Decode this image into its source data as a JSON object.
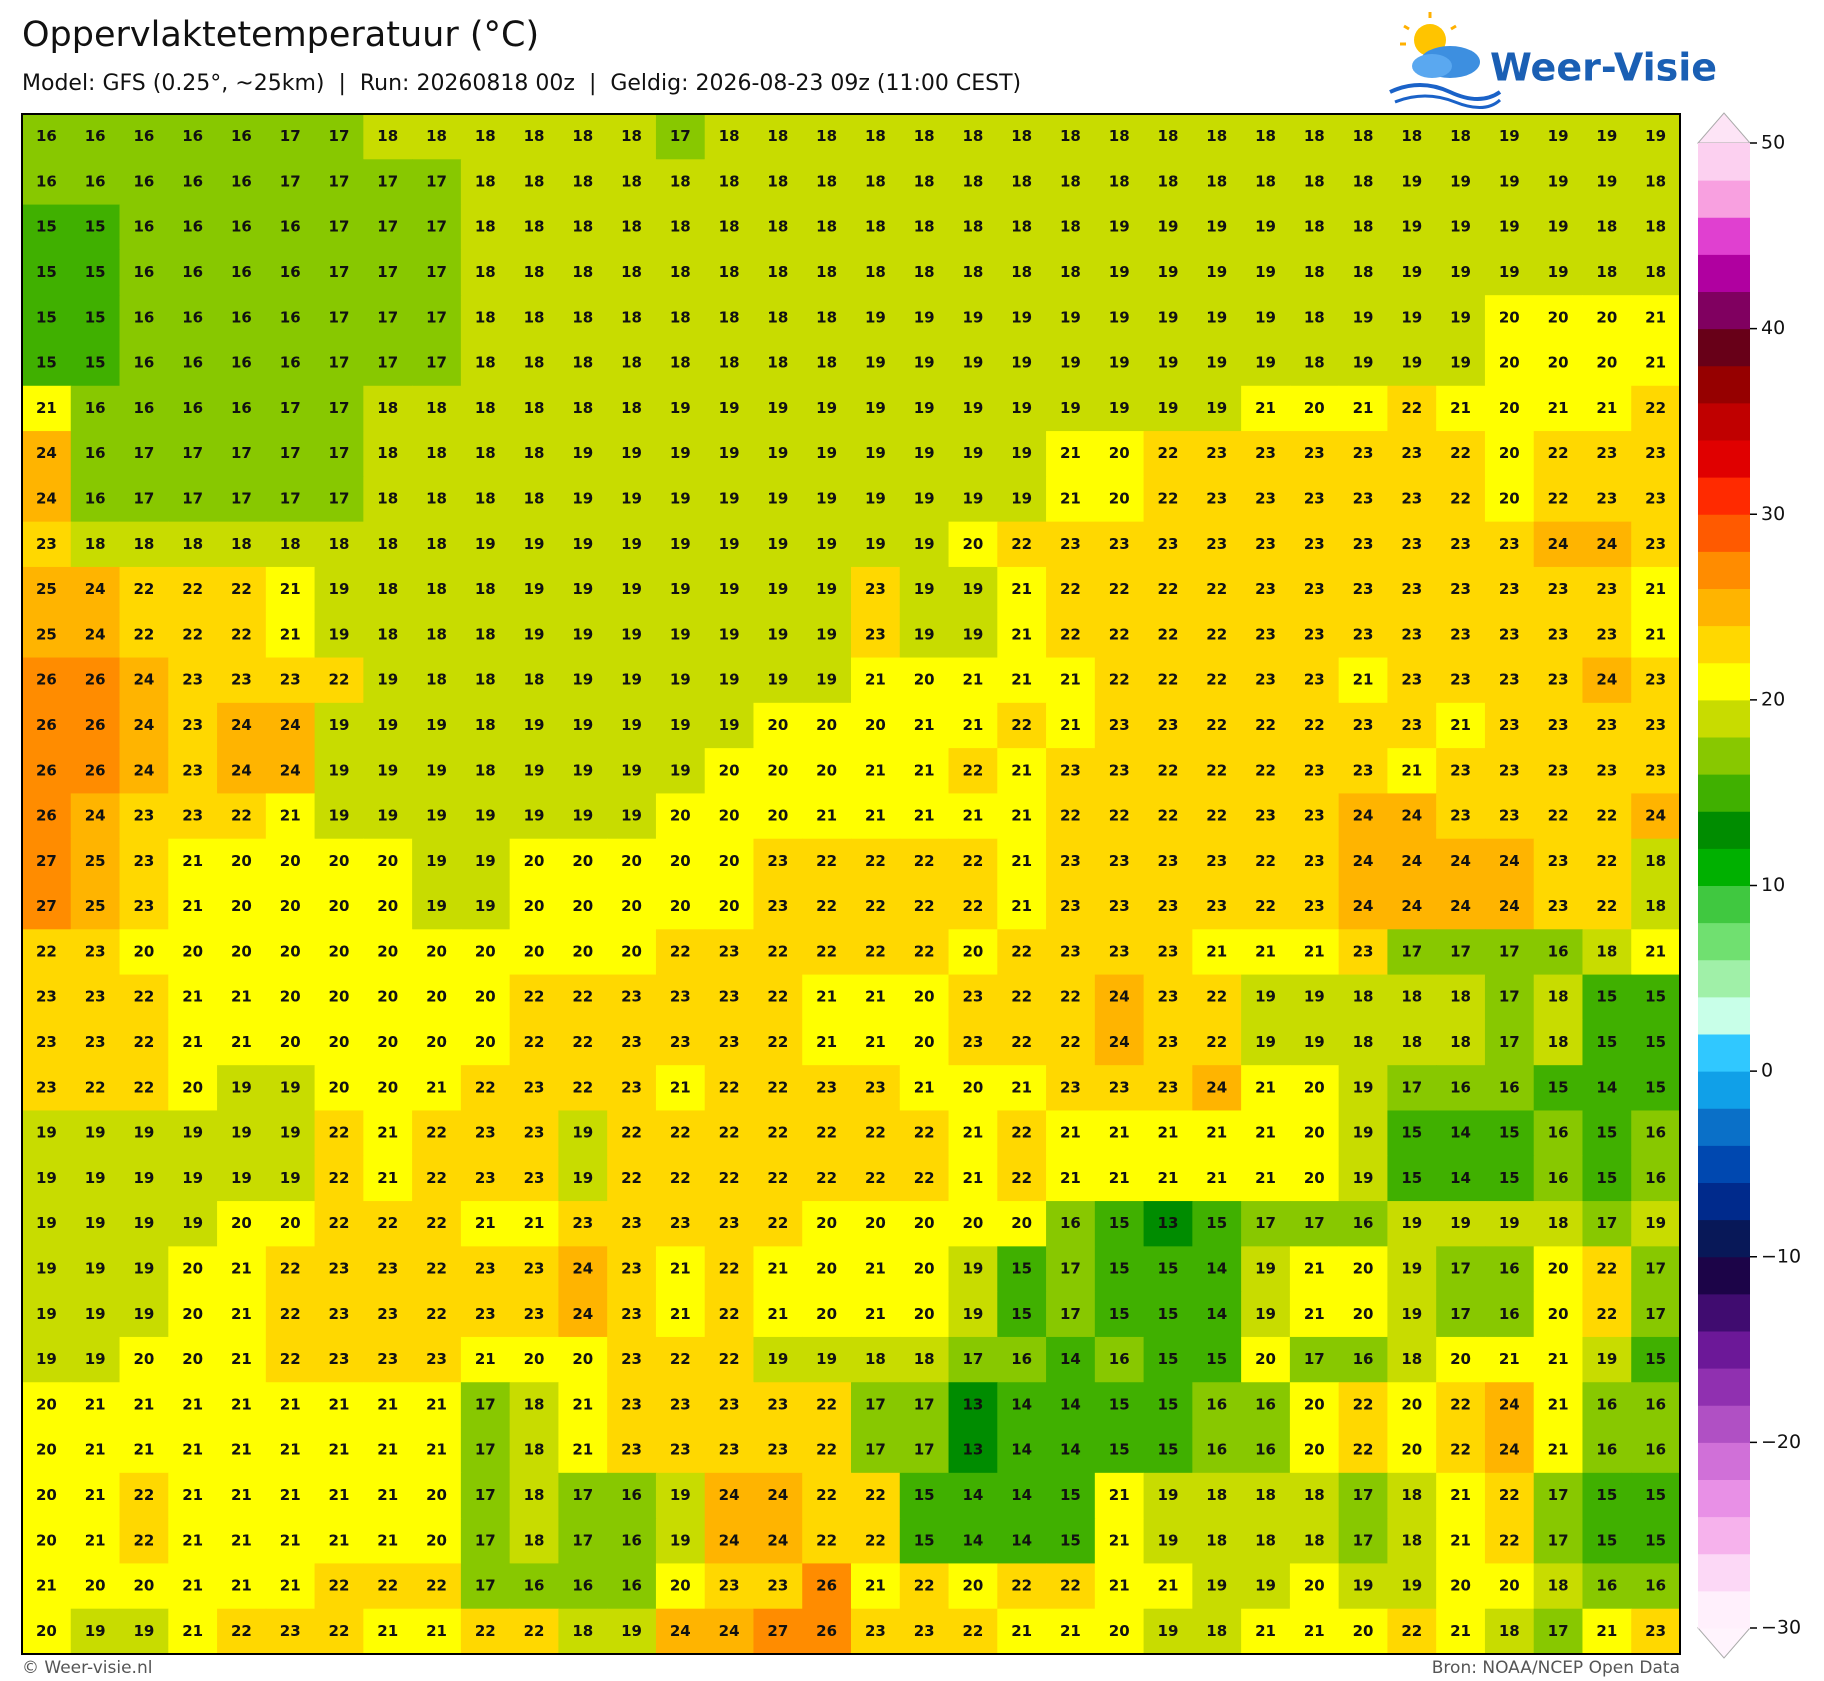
{
  "header": {
    "title": "Oppervlaktetemperatuur (°C)",
    "subtitle": "Model: GFS (0.25°, ~25km)  |  Run: 20260818 00z  |  Geldig: 2026-08-23 09z (11:00 CEST)"
  },
  "logo": "Weer-Visie",
  "chart_data": {
    "type": "heatmap",
    "values": [
      [
        16,
        16,
        16,
        16,
        16,
        17,
        17,
        18,
        18,
        18,
        18,
        18,
        18,
        17,
        18,
        18,
        18,
        18,
        18,
        18,
        18,
        18,
        18,
        18,
        18,
        18,
        18,
        18,
        18,
        18,
        19,
        19,
        19,
        19
      ],
      [
        16,
        16,
        16,
        16,
        16,
        17,
        17,
        17,
        17,
        18,
        18,
        18,
        18,
        18,
        18,
        18,
        18,
        18,
        18,
        18,
        18,
        18,
        18,
        18,
        18,
        18,
        18,
        18,
        19,
        19,
        19,
        19,
        19,
        18
      ],
      [
        15,
        15,
        16,
        16,
        16,
        16,
        17,
        17,
        17,
        18,
        18,
        18,
        18,
        18,
        18,
        18,
        18,
        18,
        18,
        18,
        18,
        18,
        19,
        19,
        19,
        19,
        18,
        18,
        19,
        19,
        19,
        19,
        18,
        18
      ],
      [
        15,
        15,
        16,
        16,
        16,
        16,
        17,
        17,
        17,
        18,
        18,
        18,
        18,
        18,
        18,
        18,
        18,
        18,
        18,
        18,
        18,
        18,
        19,
        19,
        19,
        19,
        18,
        18,
        19,
        19,
        19,
        19,
        18,
        18
      ],
      [
        15,
        15,
        16,
        16,
        16,
        16,
        17,
        17,
        17,
        18,
        18,
        18,
        18,
        18,
        18,
        18,
        18,
        19,
        19,
        19,
        19,
        19,
        19,
        19,
        19,
        19,
        18,
        19,
        19,
        19,
        20,
        20,
        20,
        21
      ],
      [
        15,
        15,
        16,
        16,
        16,
        16,
        17,
        17,
        17,
        18,
        18,
        18,
        18,
        18,
        18,
        18,
        18,
        19,
        19,
        19,
        19,
        19,
        19,
        19,
        19,
        19,
        18,
        19,
        19,
        19,
        20,
        20,
        20,
        21
      ],
      [
        21,
        16,
        16,
        16,
        16,
        17,
        17,
        18,
        18,
        18,
        18,
        18,
        18,
        19,
        19,
        19,
        19,
        19,
        19,
        19,
        19,
        19,
        19,
        19,
        19,
        21,
        20,
        21,
        22,
        21,
        20,
        21,
        21,
        22
      ],
      [
        24,
        16,
        17,
        17,
        17,
        17,
        17,
        18,
        18,
        18,
        18,
        19,
        19,
        19,
        19,
        19,
        19,
        19,
        19,
        19,
        19,
        21,
        20,
        22,
        23,
        23,
        23,
        23,
        23,
        22,
        20,
        22,
        23,
        23
      ],
      [
        24,
        16,
        17,
        17,
        17,
        17,
        17,
        18,
        18,
        18,
        18,
        19,
        19,
        19,
        19,
        19,
        19,
        19,
        19,
        19,
        19,
        21,
        20,
        22,
        23,
        23,
        23,
        23,
        23,
        22,
        20,
        22,
        23,
        23
      ],
      [
        23,
        18,
        18,
        18,
        18,
        18,
        18,
        18,
        18,
        19,
        19,
        19,
        19,
        19,
        19,
        19,
        19,
        19,
        19,
        20,
        22,
        23,
        23,
        23,
        23,
        23,
        23,
        23,
        23,
        23,
        23,
        24,
        24,
        23
      ],
      [
        25,
        24,
        22,
        22,
        22,
        21,
        19,
        18,
        18,
        18,
        19,
        19,
        19,
        19,
        19,
        19,
        19,
        23,
        19,
        19,
        21,
        22,
        22,
        22,
        22,
        23,
        23,
        23,
        23,
        23,
        23,
        23,
        23,
        21
      ],
      [
        25,
        24,
        22,
        22,
        22,
        21,
        19,
        18,
        18,
        18,
        19,
        19,
        19,
        19,
        19,
        19,
        19,
        23,
        19,
        19,
        21,
        22,
        22,
        22,
        22,
        23,
        23,
        23,
        23,
        23,
        23,
        23,
        23,
        21
      ],
      [
        26,
        26,
        24,
        23,
        23,
        23,
        22,
        19,
        18,
        18,
        18,
        19,
        19,
        19,
        19,
        19,
        19,
        21,
        20,
        21,
        21,
        21,
        22,
        22,
        22,
        23,
        23,
        21,
        23,
        23,
        23,
        23,
        24,
        23
      ],
      [
        26,
        26,
        24,
        23,
        24,
        24,
        19,
        19,
        19,
        18,
        19,
        19,
        19,
        19,
        19,
        20,
        20,
        20,
        21,
        21,
        22,
        21,
        23,
        23,
        22,
        22,
        22,
        23,
        23,
        21,
        23,
        23,
        23,
        23
      ],
      [
        26,
        26,
        24,
        23,
        24,
        24,
        19,
        19,
        19,
        18,
        19,
        19,
        19,
        19,
        20,
        20,
        20,
        21,
        21,
        22,
        21,
        23,
        23,
        22,
        22,
        22,
        23,
        23,
        21,
        23,
        23,
        23,
        23,
        23
      ],
      [
        26,
        24,
        23,
        23,
        22,
        21,
        19,
        19,
        19,
        19,
        19,
        19,
        19,
        20,
        20,
        20,
        21,
        21,
        21,
        21,
        21,
        22,
        22,
        22,
        22,
        23,
        23,
        24,
        24,
        23,
        23,
        22,
        22,
        24
      ],
      [
        27,
        25,
        23,
        21,
        20,
        20,
        20,
        20,
        19,
        19,
        20,
        20,
        20,
        20,
        20,
        23,
        22,
        22,
        22,
        22,
        21,
        23,
        23,
        23,
        23,
        22,
        23,
        24,
        24,
        24,
        24,
        23,
        22,
        18
      ],
      [
        27,
        25,
        23,
        21,
        20,
        20,
        20,
        20,
        19,
        19,
        20,
        20,
        20,
        20,
        20,
        23,
        22,
        22,
        22,
        22,
        21,
        23,
        23,
        23,
        23,
        22,
        23,
        24,
        24,
        24,
        24,
        23,
        22,
        18
      ],
      [
        22,
        23,
        20,
        20,
        20,
        20,
        20,
        20,
        20,
        20,
        20,
        20,
        20,
        22,
        23,
        22,
        22,
        22,
        22,
        20,
        22,
        23,
        23,
        23,
        21,
        21,
        21,
        23,
        17,
        17,
        17,
        16,
        18,
        21
      ],
      [
        23,
        23,
        22,
        21,
        21,
        20,
        20,
        20,
        20,
        20,
        22,
        22,
        23,
        23,
        23,
        22,
        21,
        21,
        20,
        23,
        22,
        22,
        24,
        23,
        22,
        19,
        19,
        18,
        18,
        18,
        17,
        18,
        15,
        15
      ],
      [
        23,
        23,
        22,
        21,
        21,
        20,
        20,
        20,
        20,
        20,
        22,
        22,
        23,
        23,
        23,
        22,
        21,
        21,
        20,
        23,
        22,
        22,
        24,
        23,
        22,
        19,
        19,
        18,
        18,
        18,
        17,
        18,
        15,
        15
      ],
      [
        23,
        22,
        22,
        20,
        19,
        19,
        20,
        20,
        21,
        22,
        23,
        22,
        23,
        21,
        22,
        22,
        23,
        23,
        21,
        20,
        21,
        23,
        23,
        23,
        24,
        21,
        20,
        19,
        17,
        16,
        16,
        15,
        14,
        15
      ],
      [
        19,
        19,
        19,
        19,
        19,
        19,
        22,
        21,
        22,
        23,
        23,
        19,
        22,
        22,
        22,
        22,
        22,
        22,
        22,
        21,
        22,
        21,
        21,
        21,
        21,
        21,
        20,
        19,
        15,
        14,
        15,
        16,
        15,
        16
      ],
      [
        19,
        19,
        19,
        19,
        19,
        19,
        22,
        21,
        22,
        23,
        23,
        19,
        22,
        22,
        22,
        22,
        22,
        22,
        22,
        21,
        22,
        21,
        21,
        21,
        21,
        21,
        20,
        19,
        15,
        14,
        15,
        16,
        15,
        16
      ],
      [
        19,
        19,
        19,
        19,
        20,
        20,
        22,
        22,
        22,
        21,
        21,
        23,
        23,
        23,
        23,
        22,
        20,
        20,
        20,
        20,
        20,
        16,
        15,
        13,
        15,
        17,
        17,
        16,
        19,
        19,
        19,
        18,
        17,
        19
      ],
      [
        19,
        19,
        19,
        20,
        21,
        22,
        23,
        23,
        22,
        23,
        23,
        24,
        23,
        21,
        22,
        21,
        20,
        21,
        20,
        19,
        15,
        17,
        15,
        15,
        14,
        19,
        21,
        20,
        19,
        17,
        16,
        20,
        22,
        17
      ],
      [
        19,
        19,
        19,
        20,
        21,
        22,
        23,
        23,
        22,
        23,
        23,
        24,
        23,
        21,
        22,
        21,
        20,
        21,
        20,
        19,
        15,
        17,
        15,
        15,
        14,
        19,
        21,
        20,
        19,
        17,
        16,
        20,
        22,
        17
      ],
      [
        19,
        19,
        20,
        20,
        21,
        22,
        23,
        23,
        23,
        21,
        20,
        20,
        23,
        22,
        22,
        19,
        19,
        18,
        18,
        17,
        16,
        14,
        16,
        15,
        15,
        20,
        17,
        16,
        18,
        20,
        21,
        21,
        19,
        15
      ],
      [
        20,
        21,
        21,
        21,
        21,
        21,
        21,
        21,
        21,
        17,
        18,
        21,
        23,
        23,
        23,
        23,
        22,
        17,
        17,
        13,
        14,
        14,
        15,
        15,
        16,
        16,
        20,
        22,
        20,
        22,
        24,
        21,
        16,
        16
      ],
      [
        20,
        21,
        21,
        21,
        21,
        21,
        21,
        21,
        21,
        17,
        18,
        21,
        23,
        23,
        23,
        23,
        22,
        17,
        17,
        13,
        14,
        14,
        15,
        15,
        16,
        16,
        20,
        22,
        20,
        22,
        24,
        21,
        16,
        16
      ],
      [
        20,
        21,
        22,
        21,
        21,
        21,
        21,
        21,
        20,
        17,
        18,
        17,
        16,
        19,
        24,
        24,
        22,
        22,
        15,
        14,
        14,
        15,
        21,
        19,
        18,
        18,
        18,
        17,
        18,
        21,
        22,
        17,
        15,
        15
      ],
      [
        20,
        21,
        22,
        21,
        21,
        21,
        21,
        21,
        20,
        17,
        18,
        17,
        16,
        19,
        24,
        24,
        22,
        22,
        15,
        14,
        14,
        15,
        21,
        19,
        18,
        18,
        18,
        17,
        18,
        21,
        22,
        17,
        15,
        15
      ],
      [
        21,
        20,
        20,
        21,
        21,
        21,
        22,
        22,
        22,
        17,
        16,
        16,
        16,
        20,
        23,
        23,
        26,
        21,
        22,
        20,
        22,
        22,
        21,
        21,
        19,
        19,
        20,
        19,
        19,
        20,
        20,
        18,
        16,
        16
      ],
      [
        20,
        19,
        19,
        21,
        22,
        23,
        22,
        21,
        21,
        22,
        22,
        18,
        19,
        24,
        24,
        27,
        26,
        23,
        23,
        22,
        21,
        21,
        20,
        19,
        18,
        21,
        21,
        20,
        22,
        21,
        18,
        17,
        21,
        23
      ]
    ],
    "clim": [
      -30,
      50
    ],
    "cticks": [
      {
        "value": -30,
        "label": "−30"
      },
      {
        "value": -20,
        "label": "−20"
      },
      {
        "value": -10,
        "label": "−10"
      },
      0,
      10,
      20,
      30,
      40,
      50
    ],
    "colors": [
      "#fff0fc",
      "#fcd8f6",
      "#f6b2ec",
      "#e890e6",
      "#d070d8",
      "#b050c4",
      "#9030b0",
      "#6c1898",
      "#400c70",
      "#1c0448",
      "#081858",
      "#002a8c",
      "#0048b0",
      "#0a70c8",
      "#10a0e8",
      "#30c8ff",
      "#c8ffe8",
      "#a0f0a8",
      "#70e070",
      "#40c840",
      "#00b000",
      "#008c00",
      "#40b000",
      "#88c800",
      "#c8dc00",
      "#ffff00",
      "#ffd800",
      "#ffb400",
      "#ff8c00",
      "#ff5a00",
      "#ff2a00",
      "#e00000",
      "#c00000",
      "#960000",
      "#680018",
      "#800060",
      "#b000a0",
      "#e040d0",
      "#f8a0e0",
      "#fcd0f0"
    ]
  },
  "footer": {
    "left": "© Weer-visie.nl",
    "right": "Bron: NOAA/NCEP Open Data"
  }
}
